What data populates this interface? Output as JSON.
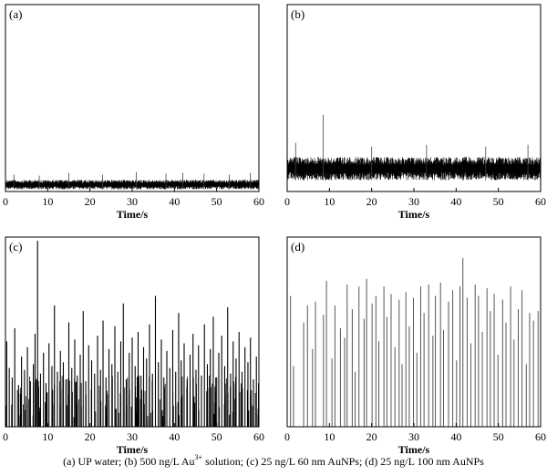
{
  "caption": {
    "part_a": "(a) UP water; (b) 500 ng/L Au",
    "superscript": "3+",
    "part_b": " solution; (c) 25 ng/L 60 nm AuNPs; (d) 25 ng/L 100 nm AuNPs"
  },
  "colors": {
    "signal": "#000000",
    "spike": "#444444",
    "axis": "#000000"
  },
  "chart_data": [
    {
      "panel": "(a)",
      "type": "line",
      "xlabel": "Time/s",
      "xlim": [
        0,
        60
      ],
      "xticks": [
        0,
        10,
        20,
        30,
        40,
        50,
        60
      ],
      "grid": false,
      "background_band": [
        0.12,
        0.62
      ],
      "spikes": [
        {
          "x": 2,
          "y": 0.9
        },
        {
          "x": 8,
          "y": 0.85
        },
        {
          "x": 15,
          "y": 1.0
        },
        {
          "x": 23,
          "y": 0.9
        },
        {
          "x": 31,
          "y": 1.05
        },
        {
          "x": 38,
          "y": 0.95
        },
        {
          "x": 42,
          "y": 1.0
        },
        {
          "x": 47,
          "y": 0.95
        },
        {
          "x": 53,
          "y": 0.9
        },
        {
          "x": 58,
          "y": 1.0
        }
      ]
    },
    {
      "panel": "(b)",
      "type": "line",
      "xlabel": "Time/s",
      "xlim": [
        0,
        60
      ],
      "xticks": [
        0,
        10,
        20,
        30,
        40,
        50,
        60
      ],
      "grid": false,
      "background_band": [
        0.6,
        1.85
      ],
      "spikes": [
        {
          "x": 8.5,
          "y": 4.1
        },
        {
          "x": 2,
          "y": 2.6
        },
        {
          "x": 20,
          "y": 2.4
        },
        {
          "x": 33,
          "y": 2.5
        },
        {
          "x": 47,
          "y": 2.4
        },
        {
          "x": 57,
          "y": 2.5
        }
      ]
    },
    {
      "panel": "(c)",
      "type": "line",
      "xlabel": "Time/s",
      "xlim": [
        0,
        60
      ],
      "xticks": [
        0,
        10,
        20,
        30,
        40,
        50,
        60
      ],
      "grid": false,
      "pulses": [
        {
          "x": 0.3,
          "y": 4.5
        },
        {
          "x": 0.9,
          "y": 3.1
        },
        {
          "x": 1.6,
          "y": 2.6
        },
        {
          "x": 2.2,
          "y": 5.2
        },
        {
          "x": 3.1,
          "y": 2.2
        },
        {
          "x": 3.8,
          "y": 3.7
        },
        {
          "x": 4.5,
          "y": 3.0
        },
        {
          "x": 5.2,
          "y": 4.2
        },
        {
          "x": 5.9,
          "y": 2.4
        },
        {
          "x": 6.6,
          "y": 3.3
        },
        {
          "x": 7.0,
          "y": 4.9
        },
        {
          "x": 7.6,
          "y": 9.8
        },
        {
          "x": 8.3,
          "y": 2.8
        },
        {
          "x": 9.0,
          "y": 3.9
        },
        {
          "x": 9.6,
          "y": 2.3
        },
        {
          "x": 10.3,
          "y": 4.4
        },
        {
          "x": 11.0,
          "y": 3.2
        },
        {
          "x": 11.6,
          "y": 6.4
        },
        {
          "x": 12.3,
          "y": 2.9
        },
        {
          "x": 13.0,
          "y": 4.0
        },
        {
          "x": 13.7,
          "y": 3.4
        },
        {
          "x": 14.3,
          "y": 2.5
        },
        {
          "x": 15.0,
          "y": 5.5
        },
        {
          "x": 15.7,
          "y": 3.1
        },
        {
          "x": 16.4,
          "y": 4.6
        },
        {
          "x": 17.0,
          "y": 2.7
        },
        {
          "x": 17.7,
          "y": 3.8
        },
        {
          "x": 18.4,
          "y": 6.1
        },
        {
          "x": 19.0,
          "y": 2.4
        },
        {
          "x": 19.7,
          "y": 4.3
        },
        {
          "x": 20.4,
          "y": 3.5
        },
        {
          "x": 21.1,
          "y": 2.8
        },
        {
          "x": 21.8,
          "y": 4.8
        },
        {
          "x": 22.5,
          "y": 3.0
        },
        {
          "x": 23.1,
          "y": 5.6
        },
        {
          "x": 23.8,
          "y": 2.6
        },
        {
          "x": 24.5,
          "y": 4.1
        },
        {
          "x": 25.2,
          "y": 3.3
        },
        {
          "x": 25.9,
          "y": 5.3
        },
        {
          "x": 26.6,
          "y": 2.9
        },
        {
          "x": 27.3,
          "y": 4.5
        },
        {
          "x": 27.9,
          "y": 6.5
        },
        {
          "x": 28.6,
          "y": 2.5
        },
        {
          "x": 29.3,
          "y": 3.9
        },
        {
          "x": 30.0,
          "y": 4.7
        },
        {
          "x": 30.7,
          "y": 3.2
        },
        {
          "x": 31.4,
          "y": 5.0
        },
        {
          "x": 32.1,
          "y": 2.7
        },
        {
          "x": 32.7,
          "y": 4.2
        },
        {
          "x": 33.4,
          "y": 3.6
        },
        {
          "x": 34.1,
          "y": 5.4
        },
        {
          "x": 34.8,
          "y": 2.8
        },
        {
          "x": 35.5,
          "y": 6.9
        },
        {
          "x": 36.2,
          "y": 3.4
        },
        {
          "x": 36.9,
          "y": 4.6
        },
        {
          "x": 37.5,
          "y": 2.6
        },
        {
          "x": 38.2,
          "y": 4.0
        },
        {
          "x": 38.9,
          "y": 3.1
        },
        {
          "x": 39.6,
          "y": 5.1
        },
        {
          "x": 40.3,
          "y": 2.9
        },
        {
          "x": 41.0,
          "y": 6.0
        },
        {
          "x": 41.6,
          "y": 3.5
        },
        {
          "x": 42.3,
          "y": 4.4
        },
        {
          "x": 43.0,
          "y": 2.5
        },
        {
          "x": 43.7,
          "y": 3.8
        },
        {
          "x": 44.4,
          "y": 4.9
        },
        {
          "x": 45.1,
          "y": 3.0
        },
        {
          "x": 45.7,
          "y": 4.3
        },
        {
          "x": 46.4,
          "y": 2.7
        },
        {
          "x": 47.1,
          "y": 5.4
        },
        {
          "x": 47.8,
          "y": 3.3
        },
        {
          "x": 48.5,
          "y": 4.1
        },
        {
          "x": 49.2,
          "y": 5.8
        },
        {
          "x": 49.8,
          "y": 2.6
        },
        {
          "x": 50.5,
          "y": 3.9
        },
        {
          "x": 51.2,
          "y": 4.8
        },
        {
          "x": 51.9,
          "y": 3.2
        },
        {
          "x": 52.6,
          "y": 6.3
        },
        {
          "x": 53.3,
          "y": 2.8
        },
        {
          "x": 53.9,
          "y": 4.5
        },
        {
          "x": 54.6,
          "y": 3.6
        },
        {
          "x": 55.3,
          "y": 5.0
        },
        {
          "x": 56.0,
          "y": 2.9
        },
        {
          "x": 56.7,
          "y": 4.2
        },
        {
          "x": 57.4,
          "y": 3.4
        },
        {
          "x": 58.0,
          "y": 4.7
        },
        {
          "x": 58.7,
          "y": 2.5
        },
        {
          "x": 59.4,
          "y": 3.7
        }
      ]
    },
    {
      "panel": "(d)",
      "type": "line",
      "xlabel": "Time/s",
      "xlim": [
        0,
        60
      ],
      "xticks": [
        0,
        10,
        20,
        30,
        40,
        50,
        60
      ],
      "grid": false,
      "pulses": [
        {
          "x": 0.8,
          "y": 6.9
        },
        {
          "x": 1.5,
          "y": 3.2
        },
        {
          "x": 3.9,
          "y": 5.5
        },
        {
          "x": 4.8,
          "y": 6.4
        },
        {
          "x": 6.0,
          "y": 4.1
        },
        {
          "x": 6.7,
          "y": 6.6
        },
        {
          "x": 8.6,
          "y": 5.9
        },
        {
          "x": 9.3,
          "y": 7.7
        },
        {
          "x": 10.6,
          "y": 3.6
        },
        {
          "x": 11.3,
          "y": 6.4
        },
        {
          "x": 12.6,
          "y": 5.2
        },
        {
          "x": 13.6,
          "y": 4.7
        },
        {
          "x": 14.2,
          "y": 7.5
        },
        {
          "x": 15.4,
          "y": 6.2
        },
        {
          "x": 16.1,
          "y": 2.9
        },
        {
          "x": 17.0,
          "y": 7.4
        },
        {
          "x": 18.2,
          "y": 5.7
        },
        {
          "x": 18.8,
          "y": 7.8
        },
        {
          "x": 20.1,
          "y": 6.5
        },
        {
          "x": 21.0,
          "y": 6.9
        },
        {
          "x": 21.7,
          "y": 4.5
        },
        {
          "x": 22.9,
          "y": 7.4
        },
        {
          "x": 23.6,
          "y": 5.8
        },
        {
          "x": 24.6,
          "y": 7.0
        },
        {
          "x": 25.5,
          "y": 4.2
        },
        {
          "x": 26.5,
          "y": 6.7
        },
        {
          "x": 27.2,
          "y": 3.3
        },
        {
          "x": 28.1,
          "y": 7.1
        },
        {
          "x": 28.9,
          "y": 5.3
        },
        {
          "x": 29.9,
          "y": 6.8
        },
        {
          "x": 30.7,
          "y": 3.9
        },
        {
          "x": 31.6,
          "y": 7.4
        },
        {
          "x": 32.4,
          "y": 6.0
        },
        {
          "x": 33.5,
          "y": 7.5
        },
        {
          "x": 34.5,
          "y": 4.8
        },
        {
          "x": 35.1,
          "y": 6.9
        },
        {
          "x": 36.3,
          "y": 7.6
        },
        {
          "x": 37.0,
          "y": 5.1
        },
        {
          "x": 38.2,
          "y": 6.6
        },
        {
          "x": 39.2,
          "y": 7.2
        },
        {
          "x": 40.1,
          "y": 3.5
        },
        {
          "x": 40.9,
          "y": 7.4
        },
        {
          "x": 41.6,
          "y": 8.9
        },
        {
          "x": 42.6,
          "y": 6.8
        },
        {
          "x": 43.5,
          "y": 4.4
        },
        {
          "x": 44.5,
          "y": 7.5
        },
        {
          "x": 45.3,
          "y": 6.9
        },
        {
          "x": 46.2,
          "y": 5.0
        },
        {
          "x": 47.3,
          "y": 7.3
        },
        {
          "x": 48.1,
          "y": 6.1
        },
        {
          "x": 49.0,
          "y": 7.0
        },
        {
          "x": 49.9,
          "y": 3.8
        },
        {
          "x": 51.0,
          "y": 6.7
        },
        {
          "x": 51.8,
          "y": 5.5
        },
        {
          "x": 52.9,
          "y": 7.4
        },
        {
          "x": 53.7,
          "y": 4.6
        },
        {
          "x": 54.7,
          "y": 6.2
        },
        {
          "x": 55.6,
          "y": 7.2
        },
        {
          "x": 56.6,
          "y": 3.3
        },
        {
          "x": 57.4,
          "y": 6.0
        },
        {
          "x": 58.3,
          "y": 5.6
        },
        {
          "x": 59.4,
          "y": 6.1
        }
      ]
    }
  ]
}
